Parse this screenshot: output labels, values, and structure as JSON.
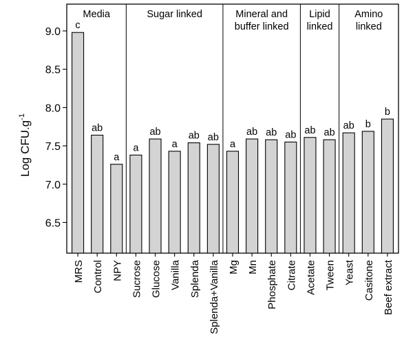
{
  "chart_data": {
    "type": "bar",
    "ylabel": "Log CFU.g",
    "ylabel_superscript": "-1",
    "ylim": [
      6.1,
      9.35
    ],
    "yticks": [
      "6.5",
      "7.0",
      "7.5",
      "8.0",
      "8.5",
      "9.0"
    ],
    "bar_color": "#d3d3d3",
    "categories": [
      "MRS",
      "Control",
      "NPY",
      "Sucrose",
      "Glucose",
      "Vanilla",
      "Splenda",
      "Splenda+Vanilla",
      "Mg",
      "Mn",
      "Phosphate",
      "Citrate",
      "Acetate",
      "Tween",
      "Yeast",
      "Casitone",
      "Beef extract"
    ],
    "values": [
      8.98,
      7.64,
      7.26,
      7.38,
      7.59,
      7.43,
      7.54,
      7.52,
      7.43,
      7.59,
      7.58,
      7.55,
      7.61,
      7.58,
      7.67,
      7.69,
      7.85
    ],
    "annotations": [
      "c",
      "ab",
      "a",
      "a",
      "ab",
      "a",
      "ab",
      "ab",
      "a",
      "ab",
      "ab",
      "ab",
      "ab",
      "ab",
      "ab",
      "b",
      "b"
    ],
    "groups": [
      {
        "lines": [
          "Media"
        ],
        "start": 0,
        "end": 2
      },
      {
        "lines": [
          "Sugar linked"
        ],
        "start": 3,
        "end": 7
      },
      {
        "lines": [
          "Mineral and",
          "buffer linked"
        ],
        "start": 8,
        "end": 11
      },
      {
        "lines": [
          "Lipid",
          "linked"
        ],
        "start": 12,
        "end": 13
      },
      {
        "lines": [
          "Amino",
          "linked"
        ],
        "start": 14,
        "end": 16
      }
    ]
  }
}
